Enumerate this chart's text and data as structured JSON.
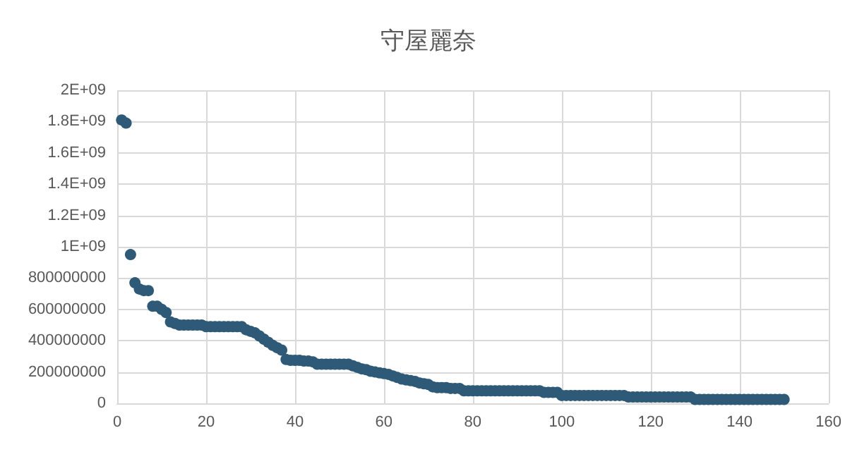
{
  "chart_data": {
    "type": "scatter",
    "title": "守屋麗奈",
    "x": [
      1,
      2,
      3,
      4,
      5,
      6,
      7,
      8,
      9,
      10,
      11,
      12,
      13,
      14,
      15,
      16,
      17,
      18,
      19,
      20,
      21,
      22,
      23,
      24,
      25,
      26,
      27,
      28,
      29,
      30,
      31,
      32,
      33,
      34,
      35,
      36,
      37,
      38,
      39,
      40,
      41,
      42,
      43,
      44,
      45,
      46,
      47,
      48,
      49,
      50,
      51,
      52,
      53,
      54,
      55,
      56,
      57,
      58,
      59,
      60,
      61,
      62,
      63,
      64,
      65,
      66,
      67,
      68,
      69,
      70,
      71,
      72,
      73,
      74,
      75,
      76,
      77,
      78,
      79,
      80,
      81,
      82,
      83,
      84,
      85,
      86,
      87,
      88,
      89,
      90,
      91,
      92,
      93,
      94,
      95,
      96,
      97,
      98,
      99,
      100,
      101,
      102,
      103,
      104,
      105,
      106,
      107,
      108,
      109,
      110,
      111,
      112,
      113,
      114,
      115,
      116,
      117,
      118,
      119,
      120,
      121,
      122,
      123,
      124,
      125,
      126,
      127,
      128,
      129,
      130,
      131,
      132,
      133,
      134,
      135,
      136,
      137,
      138,
      139,
      140,
      141,
      142,
      143,
      144,
      145,
      146,
      147,
      148,
      149,
      150
    ],
    "series": [
      {
        "color": "#2e5a78",
        "values": [
          1810000000,
          1790000000,
          950000000,
          770000000,
          730000000,
          720000000,
          720000000,
          620000000,
          620000000,
          600000000,
          580000000,
          520000000,
          510000000,
          500000000,
          500000000,
          500000000,
          500000000,
          500000000,
          500000000,
          490000000,
          490000000,
          490000000,
          490000000,
          490000000,
          490000000,
          490000000,
          490000000,
          490000000,
          470000000,
          460000000,
          450000000,
          430000000,
          410000000,
          390000000,
          370000000,
          355000000,
          340000000,
          280000000,
          275000000,
          275000000,
          275000000,
          270000000,
          270000000,
          265000000,
          250000000,
          250000000,
          250000000,
          250000000,
          250000000,
          250000000,
          250000000,
          250000000,
          240000000,
          230000000,
          220000000,
          215000000,
          205000000,
          200000000,
          195000000,
          190000000,
          185000000,
          175000000,
          165000000,
          155000000,
          150000000,
          145000000,
          140000000,
          130000000,
          125000000,
          120000000,
          105000000,
          100000000,
          100000000,
          100000000,
          95000000,
          95000000,
          95000000,
          80000000,
          80000000,
          80000000,
          80000000,
          80000000,
          80000000,
          80000000,
          80000000,
          80000000,
          80000000,
          80000000,
          80000000,
          80000000,
          80000000,
          80000000,
          80000000,
          80000000,
          80000000,
          70000000,
          70000000,
          70000000,
          70000000,
          50000000,
          50000000,
          50000000,
          50000000,
          50000000,
          50000000,
          50000000,
          50000000,
          50000000,
          50000000,
          50000000,
          50000000,
          50000000,
          50000000,
          50000000,
          40000000,
          40000000,
          40000000,
          40000000,
          40000000,
          40000000,
          40000000,
          40000000,
          40000000,
          40000000,
          40000000,
          40000000,
          40000000,
          40000000,
          40000000,
          25000000,
          25000000,
          25000000,
          25000000,
          25000000,
          25000000,
          25000000,
          25000000,
          25000000,
          25000000,
          25000000,
          25000000,
          25000000,
          25000000,
          25000000,
          25000000,
          25000000,
          25000000,
          25000000,
          25000000,
          25000000
        ]
      }
    ],
    "xlim": [
      0,
      160
    ],
    "xticks": [
      0,
      20,
      40,
      60,
      80,
      100,
      120,
      140,
      160
    ],
    "ylim": [
      0,
      2000000000
    ],
    "yticks": [
      0,
      {
        "value": 200000000,
        "label": "200000000"
      },
      {
        "value": 400000000,
        "label": "400000000"
      },
      {
        "value": 600000000,
        "label": "600000000"
      },
      {
        "value": 800000000,
        "label": "800000000"
      },
      {
        "value": 1000000000,
        "label": "1E+09"
      },
      {
        "value": 1200000000,
        "label": "1.2E+09"
      },
      {
        "value": 1400000000,
        "label": "1.4E+09"
      },
      {
        "value": 1600000000,
        "label": "1.6E+09"
      },
      {
        "value": 1800000000,
        "label": "1.8E+09"
      },
      {
        "value": 2000000000,
        "label": "2E+09"
      }
    ],
    "grid": true,
    "marker": "circle"
  }
}
